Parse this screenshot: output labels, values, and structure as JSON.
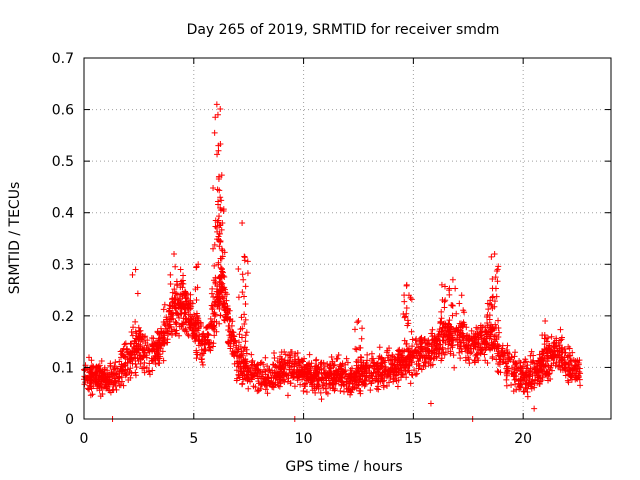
{
  "chart_data": {
    "type": "scatter",
    "title": "Day 265 of 2019, SRMTID for receiver smdm",
    "xlabel": "GPS time / hours",
    "ylabel": "SRMTID / TECUs",
    "xlim": [
      0,
      24
    ],
    "ylim": [
      0,
      0.7
    ],
    "xticks": [
      0,
      5,
      10,
      15,
      20
    ],
    "yticks": [
      0,
      0.1,
      0.2,
      0.3,
      0.4,
      0.5,
      0.6,
      0.7
    ],
    "xtick_labels": [
      "0",
      "5",
      "10",
      "15",
      "20"
    ],
    "ytick_labels": [
      "0",
      "0.1",
      "0.2",
      "0.3",
      "0.4",
      "0.5",
      "0.6",
      "0.7"
    ],
    "grid": true,
    "marker": "+",
    "series_color": "#ff0000",
    "x_end": 22.6,
    "baseline_profile": [
      [
        0.0,
        0.085
      ],
      [
        0.5,
        0.08
      ],
      [
        1.0,
        0.075
      ],
      [
        1.5,
        0.085
      ],
      [
        2.0,
        0.11
      ],
      [
        2.5,
        0.14
      ],
      [
        3.0,
        0.12
      ],
      [
        3.5,
        0.15
      ],
      [
        4.0,
        0.2
      ],
      [
        4.5,
        0.22
      ],
      [
        5.0,
        0.18
      ],
      [
        5.5,
        0.14
      ],
      [
        6.0,
        0.2
      ],
      [
        6.3,
        0.26
      ],
      [
        6.6,
        0.18
      ],
      [
        7.0,
        0.11
      ],
      [
        7.5,
        0.09
      ],
      [
        8.0,
        0.085
      ],
      [
        8.5,
        0.08
      ],
      [
        9.0,
        0.095
      ],
      [
        9.5,
        0.1
      ],
      [
        10.0,
        0.09
      ],
      [
        10.5,
        0.085
      ],
      [
        11.0,
        0.08
      ],
      [
        11.5,
        0.085
      ],
      [
        12.0,
        0.075
      ],
      [
        12.5,
        0.085
      ],
      [
        13.0,
        0.09
      ],
      [
        13.5,
        0.095
      ],
      [
        14.0,
        0.1
      ],
      [
        14.5,
        0.11
      ],
      [
        15.0,
        0.12
      ],
      [
        15.5,
        0.13
      ],
      [
        16.0,
        0.14
      ],
      [
        16.5,
        0.17
      ],
      [
        17.0,
        0.16
      ],
      [
        17.5,
        0.14
      ],
      [
        18.0,
        0.15
      ],
      [
        18.5,
        0.16
      ],
      [
        19.0,
        0.12
      ],
      [
        19.5,
        0.1
      ],
      [
        20.0,
        0.08
      ],
      [
        20.5,
        0.085
      ],
      [
        21.0,
        0.11
      ],
      [
        21.5,
        0.13
      ],
      [
        22.0,
        0.11
      ],
      [
        22.6,
        0.09
      ]
    ],
    "spread": 0.035,
    "peaks": [
      {
        "x": 2.35,
        "y": 0.29
      },
      {
        "x": 4.1,
        "y": 0.32
      },
      {
        "x": 4.4,
        "y": 0.29
      },
      {
        "x": 5.2,
        "y": 0.3
      },
      {
        "x": 6.05,
        "y": 0.61
      },
      {
        "x": 6.1,
        "y": 0.59
      },
      {
        "x": 6.12,
        "y": 0.53
      },
      {
        "x": 6.15,
        "y": 0.47
      },
      {
        "x": 6.2,
        "y": 0.43
      },
      {
        "x": 6.0,
        "y": 0.385
      },
      {
        "x": 6.3,
        "y": 0.38
      },
      {
        "x": 7.2,
        "y": 0.38
      },
      {
        "x": 7.3,
        "y": 0.315
      },
      {
        "x": 7.25,
        "y": 0.27
      },
      {
        "x": 12.5,
        "y": 0.19
      },
      {
        "x": 14.7,
        "y": 0.26
      },
      {
        "x": 14.8,
        "y": 0.24
      },
      {
        "x": 16.3,
        "y": 0.26
      },
      {
        "x": 16.8,
        "y": 0.27
      },
      {
        "x": 17.2,
        "y": 0.24
      },
      {
        "x": 18.7,
        "y": 0.32
      },
      {
        "x": 18.75,
        "y": 0.275
      },
      {
        "x": 18.5,
        "y": 0.23
      },
      {
        "x": 21.0,
        "y": 0.19
      }
    ],
    "lows": [
      {
        "x": 1.3,
        "y": 0.0
      },
      {
        "x": 9.6,
        "y": 0.0
      },
      {
        "x": 17.7,
        "y": 0.0
      },
      {
        "x": 15.8,
        "y": 0.03
      },
      {
        "x": 20.5,
        "y": 0.02
      }
    ]
  }
}
